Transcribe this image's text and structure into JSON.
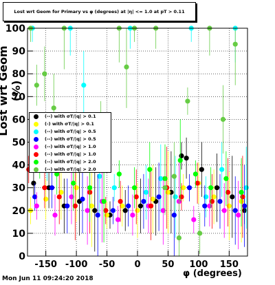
{
  "title": "Lost wrt Geom for Primary vs φ (degrees) at |η| <= 1.0 at pT > 0.11",
  "footer": "Mon Jun 11 09:24:20 2018",
  "colors": {
    "frame": "#000000",
    "grid": "#000000"
  },
  "legend": [
    {
      "label": "(--) with σT/|q| > 0.1",
      "color": "#000000"
    },
    {
      "label": "(-) with σT/|q| > 0.1",
      "color": "#ffff00"
    },
    {
      "label": "(--) with σT/|q| > 0.5",
      "color": "#00ffff"
    },
    {
      "label": "(--) with σT/|q| > 0.5",
      "color": "#0000ff"
    },
    {
      "label": "(--) with σT/|q| > 1.0",
      "color": "#ff00ff"
    },
    {
      "label": "(--) with σT/|q| > 1.0",
      "color": "#ff0000"
    },
    {
      "label": "(--) with σT/|q| > 2.0",
      "color": "#00ff00"
    },
    {
      "label": "(--) with σT/|q| > 2.0",
      "color": "#66cc44"
    }
  ],
  "chart_data": {
    "type": "scatter",
    "title": "Lost wrt Geom for Primary vs φ (degrees) at |η| <= 1.0 at pT > 0.11",
    "xlabel": "φ (degrees)",
    "ylabel": "Lost wrt Geom (%)",
    "xlim": [
      -180,
      180
    ],
    "ylim": [
      0,
      100
    ],
    "xticks": [
      -150,
      -100,
      -50,
      0,
      50,
      100,
      150
    ],
    "yticks": [
      0,
      10,
      20,
      30,
      40,
      50,
      60,
      70,
      80,
      90,
      100
    ],
    "grid": true,
    "legend_position": "left",
    "series": [
      {
        "color": "#000000",
        "x": [
          -170,
          -145,
          -120,
          -95,
          -70,
          -45,
          -20,
          5,
          30,
          55,
          72,
          80,
          105,
          130,
          155,
          175
        ],
        "y": [
          32,
          30,
          22,
          24,
          20,
          18,
          20,
          22,
          24,
          28,
          44,
          43,
          38,
          30,
          26,
          20
        ]
      },
      {
        "color": "#ffff00",
        "x": [
          -175,
          -150,
          -125,
          -100,
          -75,
          -50,
          -25,
          0,
          25,
          50,
          75,
          100,
          125,
          150,
          170
        ],
        "y": [
          20,
          25,
          28,
          30,
          22,
          18,
          22,
          20,
          25,
          28,
          30,
          32,
          26,
          22,
          24
        ]
      },
      {
        "color": "#00ffff",
        "x": [
          -172,
          -148,
          -110,
          -88,
          -62,
          -38,
          -12,
          14,
          38,
          62,
          88,
          112,
          138,
          160,
          178
        ],
        "y": [
          100,
          42,
          100,
          75,
          35,
          30,
          100,
          28,
          34,
          26,
          100,
          26,
          38,
          100,
          30
        ]
      },
      {
        "color": "#0000ff",
        "x": [
          -168,
          -140,
          -115,
          -90,
          -65,
          -40,
          -15,
          10,
          35,
          60,
          85,
          110,
          135,
          160,
          175
        ],
        "y": [
          26,
          30,
          22,
          25,
          18,
          20,
          22,
          24,
          26,
          18,
          30,
          22,
          24,
          20,
          22
        ]
      },
      {
        "color": "#ff00ff",
        "x": [
          -165,
          -135,
          -108,
          -82,
          -58,
          -32,
          -8,
          18,
          42,
          68,
          92,
          118,
          142,
          165
        ],
        "y": [
          22,
          18,
          26,
          20,
          24,
          16,
          18,
          22,
          20,
          24,
          16,
          22,
          20,
          18
        ]
      },
      {
        "color": "#ff0000",
        "x": [
          -178,
          -152,
          -128,
          -102,
          -78,
          -52,
          -28,
          -2,
          22,
          48,
          72,
          98,
          122,
          148,
          172
        ],
        "y": [
          38,
          30,
          26,
          22,
          28,
          20,
          24,
          26,
          22,
          30,
          26,
          32,
          24,
          28,
          26
        ]
      },
      {
        "color": "#00ff00",
        "x": [
          -160,
          -132,
          -105,
          -78,
          -55,
          -30,
          -5,
          20,
          45,
          70,
          95,
          120,
          145,
          170
        ],
        "y": [
          40,
          36,
          32,
          30,
          24,
          36,
          30,
          38,
          34,
          42,
          36,
          30,
          34,
          28
        ]
      },
      {
        "color": "#66cc44",
        "x": [
          -175,
          -165,
          -152,
          -137,
          -120,
          -105,
          -90,
          -60,
          -30,
          -18,
          -5,
          30,
          45,
          60,
          68,
          82,
          102,
          118,
          140,
          160
        ],
        "y": [
          100,
          75,
          80,
          65,
          100,
          55,
          50,
          56,
          100,
          83,
          100,
          100,
          30,
          35,
          8,
          68,
          10,
          100,
          60,
          93
        ]
      }
    ]
  }
}
